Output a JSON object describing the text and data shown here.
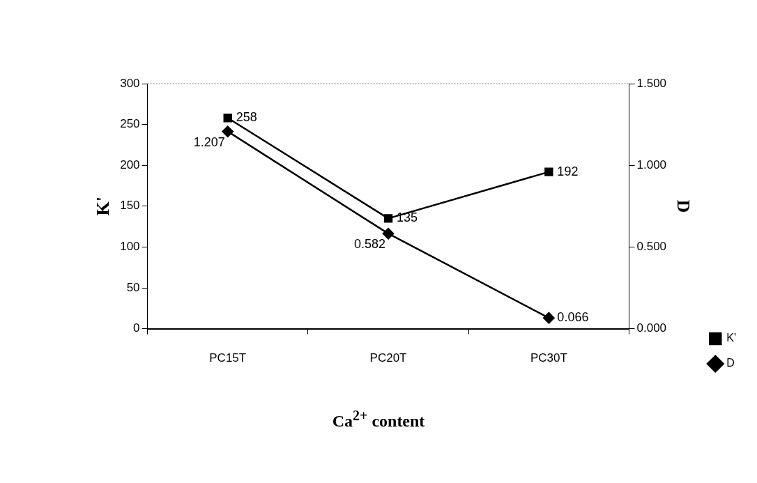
{
  "chart_data": {
    "type": "line",
    "xlabel": "Ca$^{2+}$ content",
    "ylabel": "K'",
    "y2label": "D",
    "categories": [
      "PC15T",
      "PC20T",
      "PC30T"
    ],
    "series": [
      {
        "name": "K'",
        "color": "#000000",
        "values": [
          258,
          135,
          192
        ],
        "marker": "square"
      },
      {
        "name": "D",
        "color": "#000000",
        "values": [
          1.207,
          0.582,
          0.066
        ],
        "marker": "diamond",
        "axis": "y2"
      }
    ],
    "ylim": [
      0,
      300
    ],
    "yticks": [
      0,
      50,
      100,
      150,
      200,
      250,
      300
    ],
    "y2lim": [
      0,
      1.5
    ],
    "y2ticks": [
      {
        "value": 0,
        "label": "0.000"
      },
      {
        "value": 0.5,
        "label": "0.500"
      },
      {
        "value": 1,
        "label": "1.000"
      },
      {
        "value": 1.5,
        "label": "1.500"
      }
    ],
    "data_labels": true,
    "legend": "bottom right",
    "grid": false,
    "line_style": "solid"
  }
}
